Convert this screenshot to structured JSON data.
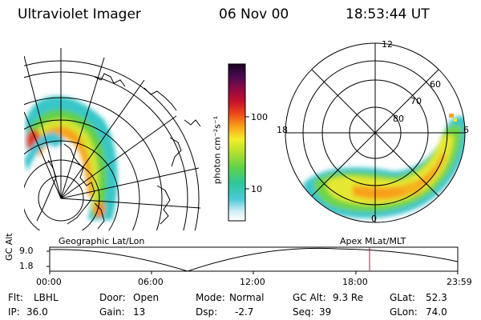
{
  "header": {
    "title": "Ultraviolet Imager",
    "date": "06 Nov 00",
    "time": "18:53:44 UT"
  },
  "colorbar": {
    "label": "photon cm⁻²s⁻¹",
    "ticks": [
      "100",
      "10"
    ]
  },
  "polar": {
    "labels": [
      "12",
      "18",
      "6",
      "0",
      "60",
      "70",
      "80"
    ]
  },
  "maps": {
    "left_caption": "Geographic Lat/Lon",
    "right_caption": "Apex MLat/MLT"
  },
  "timeline": {
    "ylabel": "GC Alt",
    "y_ticks": [
      "9.0",
      "1.8"
    ],
    "x_ticks": [
      "00:00",
      "06:00",
      "12:00",
      "18:00",
      "23:59"
    ],
    "current_time_marker": "18:53:44"
  },
  "info": {
    "flt_label": "Flt:",
    "flt_value": "LBHL",
    "door_label": "Door:",
    "door_value": "Open",
    "mode_label": "Mode:",
    "mode_value": "Normal",
    "gcalt_label": "GC Alt:",
    "gcalt_value": "9.3 Re",
    "glat_label": "GLat:",
    "glat_value": "52.3",
    "ip_label": "IP:",
    "ip_value": "36.0",
    "gain_label": "Gain:",
    "gain_value": "13",
    "dsp_label": "Dsp:",
    "dsp_value": "-2.7",
    "seq_label": "Seq:",
    "seq_value": "39",
    "glon_label": "GLon:",
    "glon_value": "74.0"
  }
}
